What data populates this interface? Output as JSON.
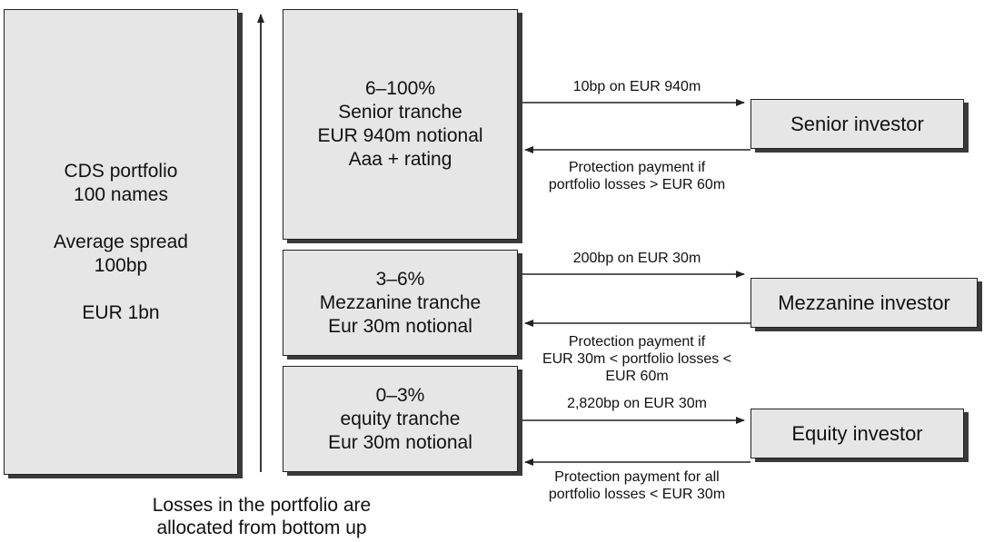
{
  "portfolio": {
    "lines": [
      "CDS portfolio",
      "100 names",
      "",
      "Average spread",
      "100bp",
      "",
      "EUR 1bn"
    ]
  },
  "tranches": {
    "senior": [
      "6–100%",
      "Senior tranche",
      "EUR 940m notional",
      "Aaa + rating"
    ],
    "mezzanine": [
      "3–6%",
      "Mezzanine tranche",
      "Eur 30m notional"
    ],
    "equity": [
      "0–3%",
      "equity tranche",
      "Eur 30m notional"
    ]
  },
  "investors": {
    "senior": "Senior investor",
    "mezzanine": "Mezzanine investor",
    "equity": "Equity investor"
  },
  "flows": {
    "senior_payment": [
      "10bp on EUR 940m"
    ],
    "senior_protection": [
      "Protection payment if",
      "portfolio losses > EUR 60m"
    ],
    "mezzanine_payment": [
      "200bp on EUR 30m"
    ],
    "mezzanine_protection": [
      "Protection payment if",
      "EUR 30m < portfolio losses <",
      "EUR 60m"
    ],
    "equity_payment": [
      "2,820bp on EUR 30m"
    ],
    "equity_protection": [
      "Protection payment for all",
      "portfolio losses < EUR 30m"
    ]
  },
  "caption": [
    "Losses in the portfolio are",
    "allocated from bottom up"
  ]
}
